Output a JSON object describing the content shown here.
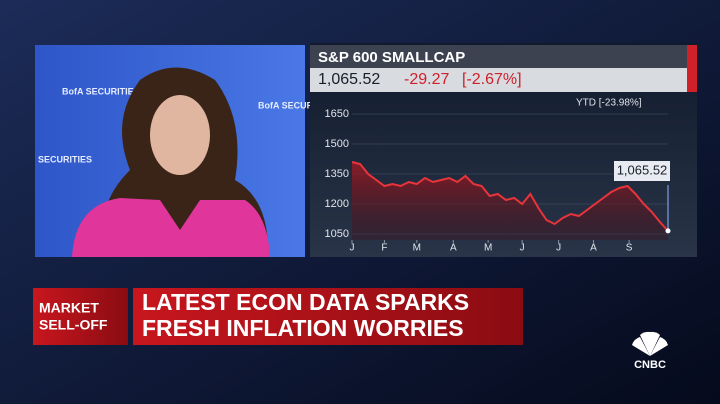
{
  "backdrop": {
    "texts": [
      "BofA SECURITIES",
      "BofA SECURITIES",
      "SECURITIES"
    ]
  },
  "ticker": {
    "title": "S&P 600 SMALLCAP",
    "price": "1,065.52",
    "change": "-29.27",
    "change_pct": "[-2.67%]",
    "ytd": "YTD  [-23.98%]"
  },
  "chart_data": {
    "type": "line",
    "x": [
      1,
      2,
      3,
      4,
      5,
      6,
      7,
      8,
      9,
      10,
      11,
      12,
      13,
      14,
      15,
      16,
      17,
      18,
      19,
      20,
      21,
      22,
      23,
      24,
      25,
      26,
      27,
      28,
      29,
      30,
      31,
      32,
      33,
      34,
      35,
      36,
      37,
      38,
      39,
      40
    ],
    "series": [
      {
        "name": "S&P 600 SMALLCAP",
        "color": "#e8343a",
        "values": [
          1410,
          1400,
          1350,
          1320,
          1290,
          1300,
          1290,
          1310,
          1300,
          1330,
          1310,
          1320,
          1330,
          1310,
          1340,
          1300,
          1290,
          1240,
          1250,
          1220,
          1230,
          1200,
          1250,
          1180,
          1120,
          1100,
          1130,
          1150,
          1140,
          1170,
          1200,
          1230,
          1260,
          1280,
          1290,
          1250,
          1200,
          1160,
          1110,
          1065.52
        ]
      }
    ],
    "xlim": [
      1,
      40
    ],
    "xticks": [
      {
        "value": 1,
        "label": "J"
      },
      {
        "value": 5,
        "label": "F"
      },
      {
        "value": 9,
        "label": "M"
      },
      {
        "value": 13.5,
        "label": "A"
      },
      {
        "value": 17.8,
        "label": "M"
      },
      {
        "value": 22,
        "label": "J"
      },
      {
        "value": 26.5,
        "label": "J"
      },
      {
        "value": 30.8,
        "label": "A"
      },
      {
        "value": 35.2,
        "label": "S"
      }
    ],
    "ylim": [
      1020,
      1720
    ],
    "yticks": [
      1050,
      1200,
      1350,
      1500,
      1650
    ],
    "grid": true
  },
  "banner": {
    "tag": [
      "MARKET",
      "SELL-OFF"
    ],
    "headline": [
      "LATEST ECON DATA SPARKS",
      "FRESH INFLATION WORRIES"
    ]
  },
  "logo": "CNBC"
}
